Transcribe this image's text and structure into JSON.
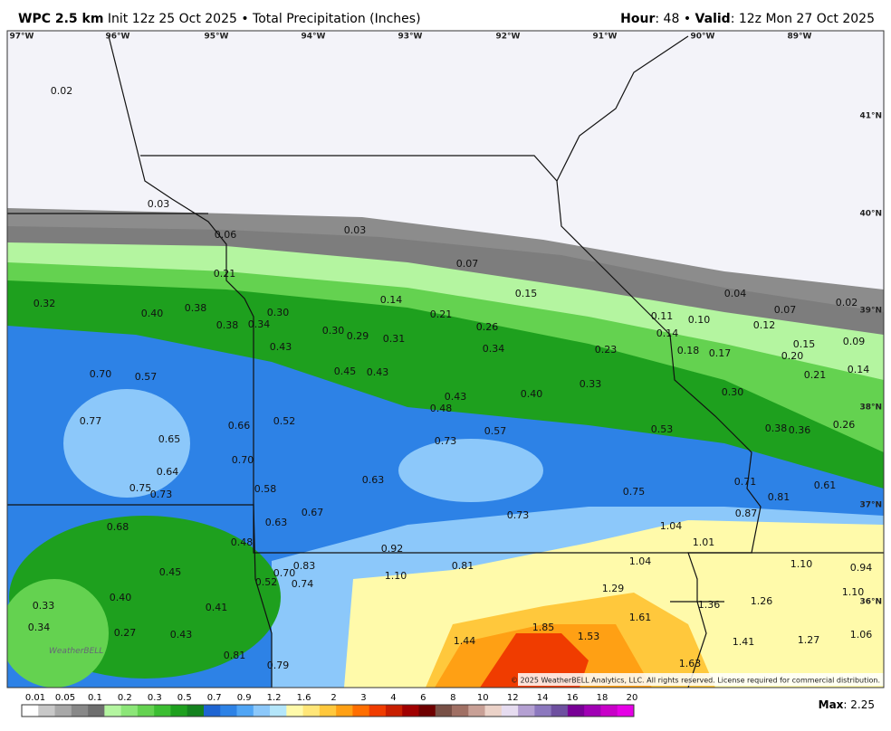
{
  "header": {
    "model": "WPC 2.5 km",
    "subtitle": "Init 12z 25 Oct 2025 • Total Precipitation (Inches)",
    "hour_label": "Hour",
    "hour_value": ": 48 •",
    "valid_label": "Valid",
    "valid_value": ": 12z Mon 27 Oct 2025"
  },
  "longitudes": [
    "97°W",
    "96°W",
    "95°W",
    "94°W",
    "93°W",
    "92°W",
    "91°W",
    "90°W",
    "89°W"
  ],
  "latitudes": [
    "41°N",
    "40°N",
    "39°N",
    "38°N",
    "37°N",
    "36°N"
  ],
  "precip_labels": [
    "0.02",
    "0.03",
    "0.06",
    "0.03",
    "0.07",
    "0.21",
    "0.32",
    "0.40",
    "0.38",
    "0.38",
    "0.34",
    "0.30",
    "0.14",
    "0.21",
    "0.15",
    "0.04",
    "0.02",
    "0.07",
    "0.11",
    "0.10",
    "0.12",
    "0.30",
    "0.29",
    "0.31",
    "0.26",
    "0.14",
    "0.15",
    "0.09",
    "0.43",
    "0.34",
    "0.23",
    "0.18",
    "0.17",
    "0.20",
    "0.70",
    "0.57",
    "0.45",
    "0.43",
    "0.21",
    "0.14",
    "0.33",
    "0.43",
    "0.40",
    "0.30",
    "0.48",
    "0.77",
    "0.66",
    "0.52",
    "0.57",
    "0.53",
    "0.38",
    "0.36",
    "0.26",
    "0.65",
    "0.73",
    "0.70",
    "0.64",
    "0.63",
    "0.71",
    "0.61",
    "0.75",
    "0.73",
    "0.58",
    "0.75",
    "0.81",
    "0.87",
    "0.73",
    "0.67",
    "0.63",
    "0.68",
    "1.04",
    "0.48",
    "1.01",
    "0.92",
    "0.45",
    "0.83",
    "0.81",
    "1.04",
    "1.10",
    "0.94",
    "0.70",
    "1.10",
    "0.52",
    "0.74",
    "1.29",
    "1.10",
    "0.40",
    "0.33",
    "0.41",
    "1.36",
    "1.26",
    "1.61",
    "0.34",
    "1.85",
    "0.27",
    "0.43",
    "1.06",
    "1.53",
    "1.44",
    "1.41",
    "1.27",
    "0.81",
    "0.79",
    "1.63"
  ],
  "watermark": "WeatherBELL",
  "copyright": "© 2025 WeatherBELL Analytics, LLC. All rights reserved. License required for commercial distribution.",
  "colorbar": {
    "ticks": [
      "0.01",
      "0.05",
      "0.1",
      "0.2",
      "0.3",
      "0.5",
      "0.7",
      "0.9",
      "1.2",
      "1.6",
      "2",
      "3",
      "4",
      "6",
      "8",
      "10",
      "12",
      "14",
      "16",
      "18",
      "20"
    ],
    "colors": [
      "#ffffff",
      "#c8c8c8",
      "#a8a8a8",
      "#888888",
      "#6e6e6e",
      "#b4f5a0",
      "#8ce678",
      "#64d250",
      "#3cbe32",
      "#1ea01e",
      "#14821e",
      "#1e64d2",
      "#2d82e6",
      "#50a5f5",
      "#8cc8fa",
      "#b4e6fa",
      "#fffaaa",
      "#ffe678",
      "#ffc83c",
      "#ffa014",
      "#ff6e00",
      "#f03c00",
      "#c81e00",
      "#a00000",
      "#6e0000",
      "#785046",
      "#a07064",
      "#c8a096",
      "#ebd2c8",
      "#e6dcf0",
      "#b4a0d2",
      "#8c78be",
      "#6e50a0",
      "#780096",
      "#a000b4",
      "#c800c8",
      "#e600e6"
    ]
  },
  "max_label": "Max",
  "max_value": ": 2.25"
}
